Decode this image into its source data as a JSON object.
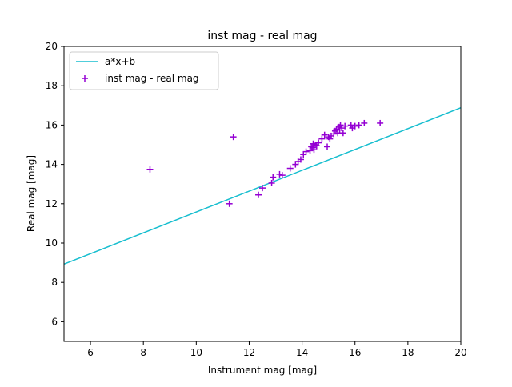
{
  "chart_data": {
    "type": "scatter",
    "title": "inst mag - real mag",
    "xlabel": "Instrument mag [mag]",
    "ylabel": "Real mag [mag]",
    "xlim": [
      5,
      20
    ],
    "ylim": [
      5,
      20
    ],
    "xticks": [
      6,
      8,
      10,
      12,
      14,
      16,
      18,
      20
    ],
    "yticks": [
      6,
      8,
      10,
      12,
      14,
      16,
      18,
      20
    ],
    "grid": false,
    "legend_position": "top-left",
    "series": [
      {
        "name": "a*x+b",
        "kind": "line",
        "color": "#17becf",
        "x": [
          5,
          20
        ],
        "y": [
          8.93,
          16.88
        ]
      },
      {
        "name": "inst mag - real mag",
        "kind": "scatter",
        "marker": "+",
        "color": "#9400d3",
        "x": [
          8.25,
          11.25,
          11.4,
          12.35,
          12.5,
          12.85,
          12.9,
          13.15,
          13.25,
          13.55,
          13.75,
          13.85,
          13.95,
          14.05,
          14.15,
          14.3,
          14.35,
          14.4,
          14.42,
          14.45,
          14.5,
          14.55,
          14.62,
          14.75,
          14.85,
          14.95,
          15.0,
          15.05,
          15.1,
          15.2,
          15.25,
          15.3,
          15.35,
          15.4,
          15.42,
          15.45,
          15.5,
          15.55,
          15.62,
          15.85,
          15.9,
          16.0,
          16.15,
          16.35,
          16.95
        ],
        "y": [
          13.75,
          12.0,
          15.4,
          12.45,
          12.8,
          13.05,
          13.35,
          13.5,
          13.45,
          13.8,
          14.0,
          14.15,
          14.25,
          14.5,
          14.65,
          14.7,
          14.9,
          14.85,
          15.05,
          14.75,
          15.0,
          14.95,
          15.1,
          15.3,
          15.5,
          14.9,
          15.4,
          15.3,
          15.45,
          15.55,
          15.7,
          15.8,
          15.6,
          15.9,
          15.75,
          16.0,
          15.85,
          15.6,
          15.95,
          16.0,
          15.85,
          15.95,
          16.0,
          16.1,
          16.1
        ]
      }
    ]
  }
}
